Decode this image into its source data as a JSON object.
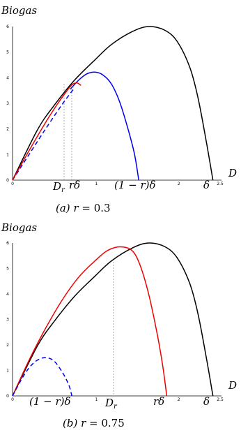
{
  "chart_data": [
    {
      "type": "line",
      "ylabel": "Biogas",
      "xlabel": "D",
      "caption": "(a)    r = 0.3",
      "xlim": [
        0,
        2.5
      ],
      "ylim": [
        0,
        6
      ],
      "x_ticks": [
        "0",
        "1",
        "2",
        "2.5"
      ],
      "y_ticks": [
        "0",
        "1",
        "2",
        "3",
        "4",
        "5",
        "6"
      ],
      "x_annotations": [
        "Dr",
        "rδ",
        "(1 − r)δ",
        "δ"
      ],
      "grid": false,
      "series": [
        {
          "color": "#000000",
          "dash": "solid",
          "points": [
            [
              0,
              0
            ],
            [
              0.3,
              1.95
            ],
            [
              0.5,
              2.9
            ],
            [
              0.75,
              3.9
            ],
            [
              1.0,
              4.7
            ],
            [
              1.2,
              5.3
            ],
            [
              1.45,
              5.8
            ],
            [
              1.65,
              6.0
            ],
            [
              1.85,
              5.85
            ],
            [
              2.0,
              5.4
            ],
            [
              2.15,
              4.4
            ],
            [
              2.25,
              3.2
            ],
            [
              2.35,
              1.5
            ],
            [
              2.43,
              0
            ]
          ]
        },
        {
          "color": "#0000ee",
          "dash": "solid",
          "points": [
            [
              0.7,
              3.55
            ],
            [
              0.8,
              3.9
            ],
            [
              0.9,
              4.15
            ],
            [
              1.0,
              4.22
            ],
            [
              1.1,
              4.1
            ],
            [
              1.2,
              3.75
            ],
            [
              1.3,
              3.05
            ],
            [
              1.4,
              2.0
            ],
            [
              1.48,
              1.0
            ],
            [
              1.53,
              0
            ]
          ]
        },
        {
          "color": "#0000ee",
          "dash": "dashed",
          "points": [
            [
              0,
              0
            ],
            [
              0.2,
              1.0
            ],
            [
              0.4,
              2.0
            ],
            [
              0.6,
              2.95
            ],
            [
              0.75,
              3.6
            ]
          ]
        },
        {
          "color": "#ee0000",
          "dash": "solid",
          "points": [
            [
              0,
              0
            ],
            [
              0.2,
              1.15
            ],
            [
              0.4,
              2.25
            ],
            [
              0.55,
              3.0
            ],
            [
              0.65,
              3.45
            ],
            [
              0.72,
              3.72
            ],
            [
              0.78,
              3.8
            ],
            [
              0.83,
              3.7
            ]
          ]
        }
      ]
    },
    {
      "type": "line",
      "ylabel": "Biogas",
      "xlabel": "D",
      "caption": "(b)    r = 0.75",
      "xlim": [
        0,
        2.5
      ],
      "ylim": [
        0,
        6
      ],
      "x_ticks": [
        "0",
        "1",
        "2",
        "2.5"
      ],
      "y_ticks": [
        "0",
        "1",
        "2",
        "3",
        "4",
        "5",
        "6"
      ],
      "x_annotations": [
        "(1 − r)δ",
        "Dr",
        "rδ",
        "δ"
      ],
      "grid": false,
      "series": [
        {
          "color": "#000000",
          "dash": "solid",
          "points": [
            [
              0,
              0
            ],
            [
              0.3,
              1.95
            ],
            [
              0.5,
              2.9
            ],
            [
              0.75,
              3.9
            ],
            [
              1.0,
              4.7
            ],
            [
              1.2,
              5.3
            ],
            [
              1.45,
              5.8
            ],
            [
              1.65,
              6.0
            ],
            [
              1.85,
              5.85
            ],
            [
              2.0,
              5.4
            ],
            [
              2.15,
              4.4
            ],
            [
              2.25,
              3.2
            ],
            [
              2.35,
              1.5
            ],
            [
              2.43,
              0
            ]
          ]
        },
        {
          "color": "#ee0000",
          "dash": "solid",
          "points": [
            [
              0,
              0
            ],
            [
              0.2,
              1.4
            ],
            [
              0.4,
              2.65
            ],
            [
              0.6,
              3.75
            ],
            [
              0.8,
              4.65
            ],
            [
              1.0,
              5.3
            ],
            [
              1.15,
              5.7
            ],
            [
              1.3,
              5.85
            ],
            [
              1.45,
              5.7
            ],
            [
              1.55,
              5.1
            ],
            [
              1.65,
              4.0
            ],
            [
              1.75,
              2.5
            ],
            [
              1.82,
              1.2
            ],
            [
              1.87,
              0
            ]
          ]
        },
        {
          "color": "#0000ee",
          "dash": "dashed",
          "points": [
            [
              0,
              0
            ],
            [
              0.1,
              0.6
            ],
            [
              0.2,
              1.1
            ],
            [
              0.3,
              1.4
            ],
            [
              0.4,
              1.5
            ],
            [
              0.5,
              1.38
            ],
            [
              0.6,
              0.95
            ],
            [
              0.68,
              0.45
            ],
            [
              0.72,
              0
            ]
          ]
        }
      ]
    }
  ]
}
